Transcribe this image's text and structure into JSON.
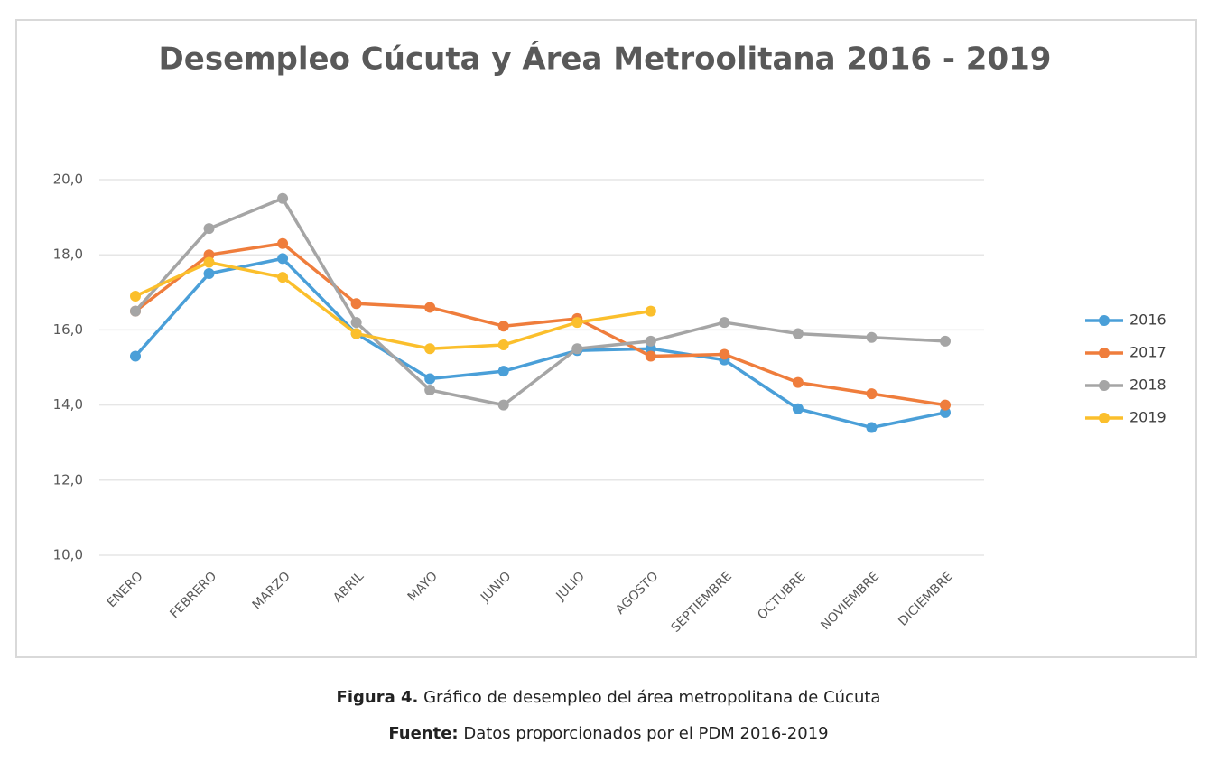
{
  "chart_data": {
    "type": "line",
    "title": "Desempleo Cúcuta y Área Metroolitana 2016 - 2019",
    "categories": [
      "ENERO",
      "FEBRERO",
      "MARZO",
      "ABRIL",
      "MAYO",
      "JUNIO",
      "JULIO",
      "AGOSTO",
      "SEPTIEMBRE",
      "OCTUBRE",
      "NOVIEMBRE",
      "DICIEMBRE"
    ],
    "series": [
      {
        "name": "2016",
        "color": "#4a9fd8",
        "values": [
          15.3,
          17.5,
          17.9,
          15.9,
          14.7,
          14.9,
          15.45,
          15.5,
          15.2,
          13.9,
          13.4,
          13.8
        ]
      },
      {
        "name": "2017",
        "color": "#ef7d3c",
        "values": [
          16.5,
          18.0,
          18.3,
          16.7,
          16.6,
          16.1,
          16.3,
          15.3,
          15.35,
          14.6,
          14.3,
          14.0
        ]
      },
      {
        "name": "2018",
        "color": "#a5a5a5",
        "values": [
          16.5,
          18.7,
          19.5,
          16.2,
          14.4,
          14.0,
          15.5,
          15.7,
          16.2,
          15.9,
          15.8,
          15.7
        ]
      },
      {
        "name": "2019",
        "color": "#fbbf2c",
        "values": [
          16.9,
          17.8,
          17.4,
          15.9,
          15.5,
          15.6,
          16.2,
          16.5,
          null,
          null,
          null,
          null
        ]
      }
    ],
    "ylim": [
      10,
      20
    ],
    "yticks": [
      {
        "value": 10,
        "label": "10,0"
      },
      {
        "value": 12,
        "label": "12,0"
      },
      {
        "value": 14,
        "label": "14,0"
      },
      {
        "value": 16,
        "label": "16,0"
      },
      {
        "value": 18,
        "label": "18,0"
      },
      {
        "value": 20,
        "label": "20,0"
      }
    ],
    "grid": true,
    "legend": "right"
  },
  "caption": {
    "figure_label": "Figura 4.",
    "figure_text": "Gráfico de desempleo del área metropolitana de Cúcuta",
    "source_label": "Fuente:",
    "source_text": "Datos proporcionados por el PDM 2016-2019"
  }
}
